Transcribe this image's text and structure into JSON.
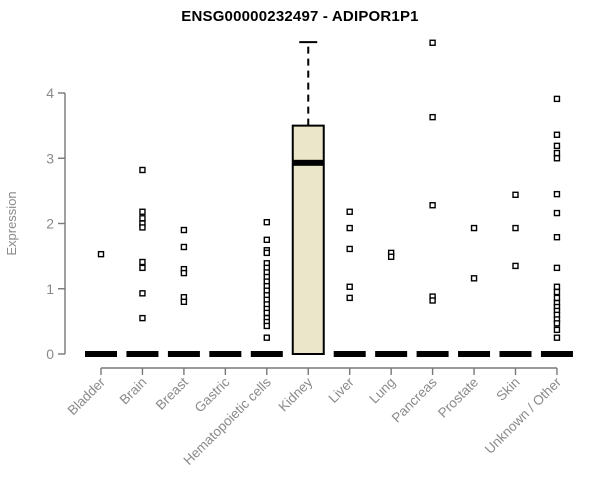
{
  "chart_data": {
    "type": "box",
    "title": "ENSG00000232497 - ADIPOR1P1",
    "ylabel": "Expression",
    "xlabel": "",
    "yticks": [
      0,
      1,
      2,
      3,
      4
    ],
    "ylim": [
      0,
      4.9
    ],
    "grid": false,
    "legend": false,
    "colors": {
      "box_fill": "#EBE5C9",
      "box_border": "#000000",
      "median": "#000000",
      "zero_bar": "#000000",
      "outlier_stroke": "#000000",
      "outlier_fill": "#ffffff",
      "axis_line": "#787878",
      "axis_text": "#8a8a8a",
      "title_text": "#000000",
      "background": "#ffffff"
    },
    "categories": [
      "Bladder",
      "Brain",
      "Breast",
      "Gastric",
      "Hematopoietic cells",
      "Kidney",
      "Liver",
      "Lung",
      "Pancreas",
      "Prostate",
      "Skin",
      "Unknown / Other"
    ],
    "series": [
      {
        "category": "Bladder",
        "q1": 0,
        "median": 0,
        "q3": 0,
        "whisker_low": 0,
        "whisker_high": 0,
        "outliers": [
          1.53
        ]
      },
      {
        "category": "Brain",
        "q1": 0,
        "median": 0,
        "q3": 0,
        "whisker_low": 0,
        "whisker_high": 0,
        "outliers": [
          2.82,
          2.18,
          2.08,
          2.0,
          1.94,
          1.41,
          1.32,
          0.93,
          0.55
        ]
      },
      {
        "category": "Breast",
        "q1": 0,
        "median": 0,
        "q3": 0,
        "whisker_low": 0,
        "whisker_high": 0,
        "outliers": [
          1.9,
          1.64,
          1.3,
          1.24,
          0.87,
          0.8
        ]
      },
      {
        "category": "Gastric",
        "q1": 0,
        "median": 0,
        "q3": 0,
        "whisker_low": 0,
        "whisker_high": 0,
        "outliers": []
      },
      {
        "category": "Hematopoietic cells",
        "q1": 0,
        "median": 0,
        "q3": 0,
        "whisker_low": 0,
        "whisker_high": 0,
        "outliers": [
          2.02,
          1.75,
          1.59,
          1.55,
          1.39,
          1.32,
          1.25,
          1.18,
          1.11,
          1.04,
          0.97,
          0.9,
          0.83,
          0.76,
          0.69,
          0.63,
          0.55,
          0.49,
          0.43,
          0.25
        ]
      },
      {
        "category": "Kidney",
        "q1": 0,
        "median": 2.93,
        "q3": 3.5,
        "whisker_low": 0,
        "whisker_high": 4.78,
        "outliers": []
      },
      {
        "category": "Liver",
        "q1": 0,
        "median": 0,
        "q3": 0,
        "whisker_low": 0,
        "whisker_high": 0,
        "outliers": [
          2.18,
          1.93,
          1.61,
          1.03,
          0.86
        ]
      },
      {
        "category": "Lung",
        "q1": 0,
        "median": 0,
        "q3": 0,
        "whisker_low": 0,
        "whisker_high": 0,
        "outliers": [
          1.55,
          1.49
        ]
      },
      {
        "category": "Pancreas",
        "q1": 0,
        "median": 0,
        "q3": 0,
        "whisker_low": 0,
        "whisker_high": 0,
        "outliers": [
          4.77,
          3.63,
          2.28,
          0.88,
          0.82
        ]
      },
      {
        "category": "Prostate",
        "q1": 0,
        "median": 0,
        "q3": 0,
        "whisker_low": 0,
        "whisker_high": 0,
        "outliers": [
          1.93,
          1.16
        ]
      },
      {
        "category": "Skin",
        "q1": 0,
        "median": 0,
        "q3": 0,
        "whisker_low": 0,
        "whisker_high": 0,
        "outliers": [
          2.44,
          1.93,
          1.35
        ]
      },
      {
        "category": "Unknown / Other",
        "q1": 0,
        "median": 0,
        "q3": 0,
        "whisker_low": 0,
        "whisker_high": 0,
        "outliers": [
          3.91,
          3.36,
          3.19,
          3.08,
          3.0,
          2.45,
          2.16,
          1.79,
          1.32,
          1.03,
          0.95,
          0.86,
          0.78,
          0.72,
          0.66,
          0.6,
          0.53,
          0.47,
          0.37,
          0.25
        ]
      }
    ]
  }
}
